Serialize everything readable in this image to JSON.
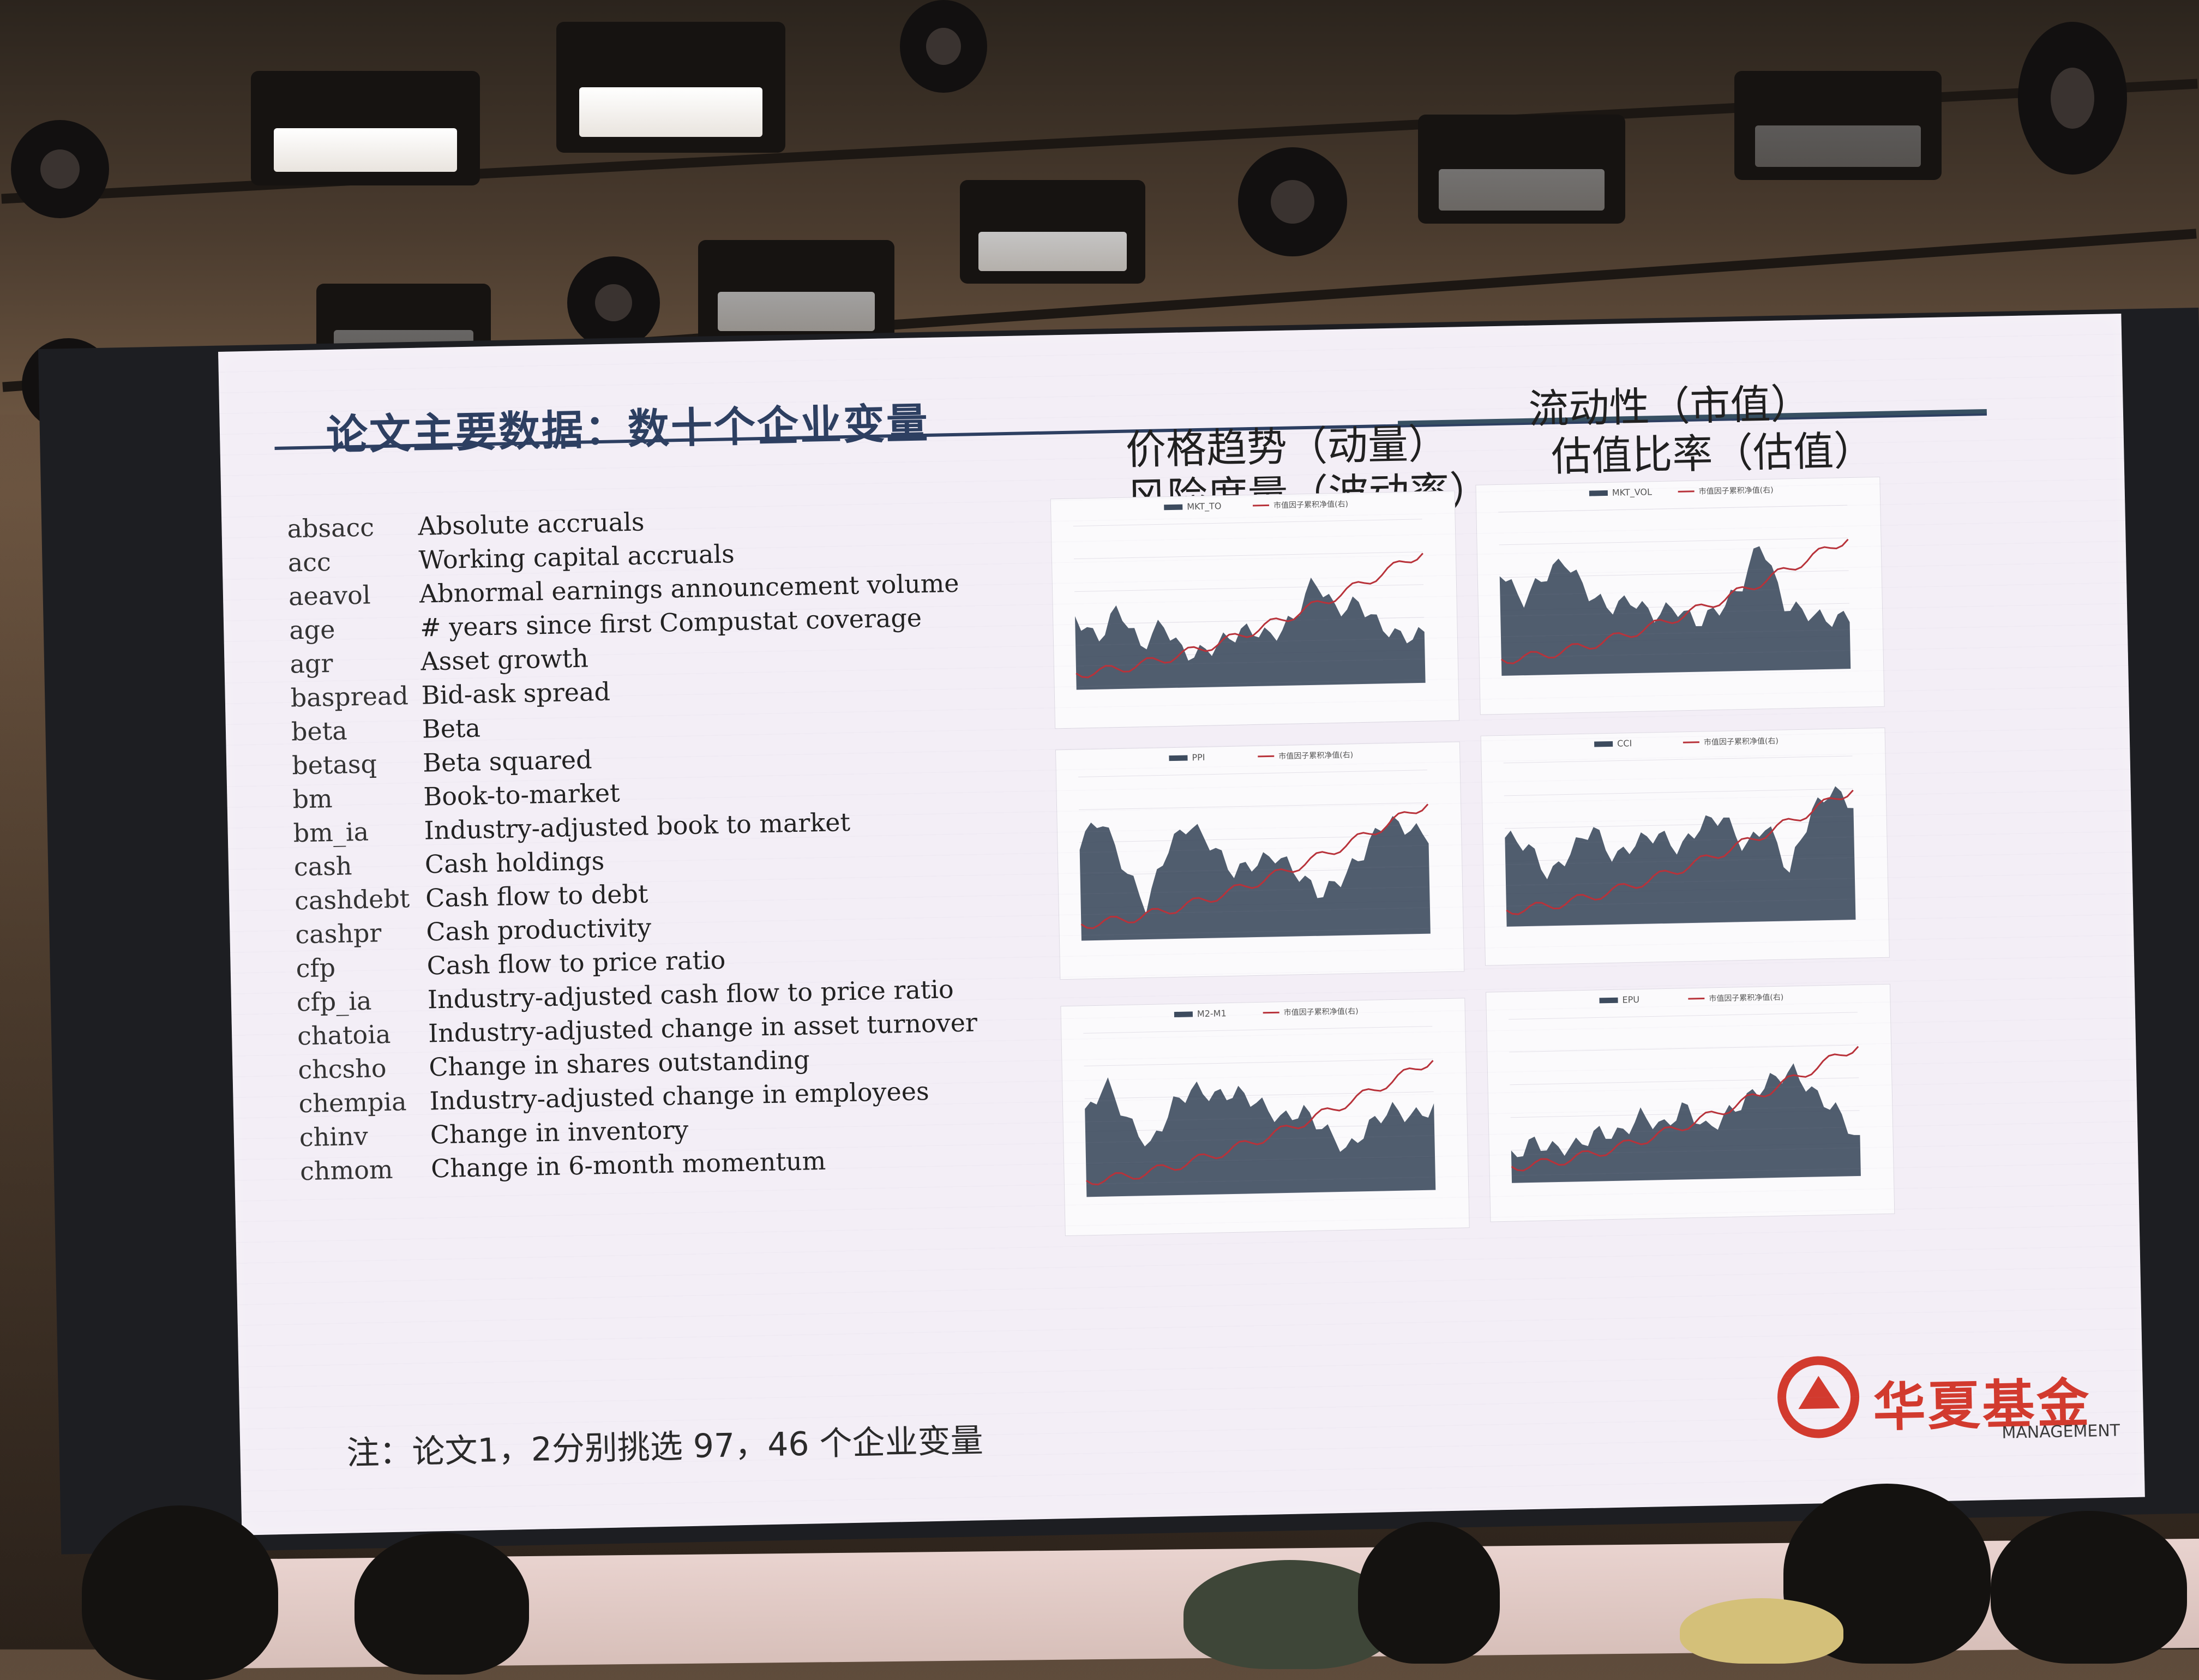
{
  "slide": {
    "title": "论文主要数据：数十个企业变量",
    "categories": {
      "momentum": "价格趋势（动量）",
      "volatility": "风险度量（波动率）",
      "liquidity": "流动性（市值）",
      "valuation": "估值比率（估值）"
    },
    "variables": [
      {
        "abbr": "absacc",
        "desc": "Absolute accruals"
      },
      {
        "abbr": "acc",
        "desc": "Working capital accruals"
      },
      {
        "abbr": "aeavol",
        "desc": "Abnormal earnings announcement volume"
      },
      {
        "abbr": "age",
        "desc": "# years since first Compustat coverage"
      },
      {
        "abbr": "agr",
        "desc": "Asset growth"
      },
      {
        "abbr": "baspread",
        "desc": "Bid-ask spread"
      },
      {
        "abbr": "beta",
        "desc": "Beta"
      },
      {
        "abbr": "betasq",
        "desc": "Beta squared"
      },
      {
        "abbr": "bm",
        "desc": "Book-to-market"
      },
      {
        "abbr": "bm_ia",
        "desc": "Industry-adjusted book to market"
      },
      {
        "abbr": "cash",
        "desc": "Cash holdings"
      },
      {
        "abbr": "cashdebt",
        "desc": "Cash flow to debt"
      },
      {
        "abbr": "cashpr",
        "desc": "Cash productivity"
      },
      {
        "abbr": "cfp",
        "desc": "Cash flow to price ratio"
      },
      {
        "abbr": "cfp_ia",
        "desc": "Industry-adjusted cash flow to price ratio"
      },
      {
        "abbr": "chatoia",
        "desc": "Industry-adjusted change in asset turnover"
      },
      {
        "abbr": "chcsho",
        "desc": "Change in shares outstanding"
      },
      {
        "abbr": "chempia",
        "desc": "Industry-adjusted change in employees"
      },
      {
        "abbr": "chinv",
        "desc": "Change in inventory"
      },
      {
        "abbr": "chmom",
        "desc": "Change in 6-month momentum"
      }
    ],
    "footnote": "注：论文1，2分别挑选 97，46 个企业变量",
    "logo": {
      "name": "华夏基金",
      "sub": "MANAGEMENT"
    }
  },
  "mini_charts": [
    {
      "legend": [
        "MKT_TO",
        "市值因子累积净值(右)"
      ],
      "area_color": "#3d4b5e",
      "line_color": "#b8323a"
    },
    {
      "legend": [
        "MKT_VOL",
        "市值因子累积净值(右)"
      ],
      "area_color": "#3d4b5e",
      "line_color": "#b8323a"
    },
    {
      "legend": [
        "PPI",
        "市值因子累积净值(右)"
      ],
      "area_color": "#3d4b5e",
      "line_color": "#b8323a"
    },
    {
      "legend": [
        "CCI",
        "市值因子累积净值(右)"
      ],
      "area_color": "#3d4b5e",
      "line_color": "#b8323a"
    },
    {
      "legend": [
        "M2-M1",
        "市值因子累积净值(右)"
      ],
      "area_color": "#3d4b5e",
      "line_color": "#b8323a"
    },
    {
      "legend": [
        "EPU",
        "市值因子累积净值(右)"
      ],
      "area_color": "#3d4b5e",
      "line_color": "#b8323a"
    }
  ],
  "colors": {
    "title_navy": "#2d3f61",
    "logo_red": "#d23a2e",
    "screen_bg": "#f3eef6"
  }
}
